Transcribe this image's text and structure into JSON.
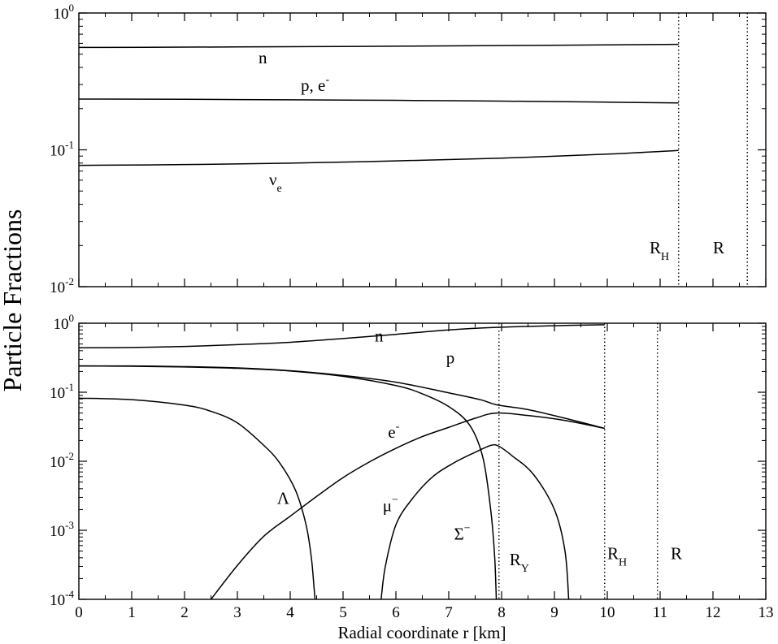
{
  "figure": {
    "ylabel": "Particle Fractions",
    "xlabel": "Radial coordinate r [km]"
  },
  "chart_data": [
    {
      "type": "line",
      "panel": "top",
      "log_y": true,
      "xlim": [
        0,
        13
      ],
      "ylim": [
        0.01,
        1
      ],
      "x_ticks": [
        0,
        1,
        2,
        3,
        4,
        5,
        6,
        7,
        8,
        9,
        10,
        11,
        12,
        13
      ],
      "y_ticks": [
        {
          "base": "10",
          "exp": "0",
          "value": 1
        },
        {
          "base": "10",
          "exp": "-1",
          "value": 0.1
        },
        {
          "base": "10",
          "exp": "-2",
          "value": 0.01
        }
      ],
      "x_tick_labels_shown": false,
      "series": [
        {
          "name": "n",
          "x": [
            0,
            2,
            4,
            6,
            8,
            10,
            11.35
          ],
          "y": [
            0.56,
            0.563,
            0.567,
            0.572,
            0.578,
            0.585,
            0.59
          ]
        },
        {
          "name": "p, e-",
          "x": [
            0,
            2,
            4,
            6,
            8,
            10,
            11.35
          ],
          "y": [
            0.235,
            0.234,
            0.232,
            0.23,
            0.227,
            0.223,
            0.22
          ]
        },
        {
          "name": "νe",
          "x": [
            0,
            2,
            4,
            6,
            8,
            10,
            11.35
          ],
          "y": [
            0.077,
            0.078,
            0.08,
            0.083,
            0.087,
            0.093,
            0.099
          ]
        }
      ],
      "annotations": [
        {
          "kind": "text",
          "parts": [
            {
              "text": "n"
            }
          ],
          "x": 3.4,
          "y": 0.43
        },
        {
          "kind": "text",
          "parts": [
            {
              "text": "p, e"
            },
            {
              "text": "-",
              "sup": true
            }
          ],
          "x": 4.2,
          "y": 0.27
        },
        {
          "kind": "text",
          "parts": [
            {
              "text": "ν"
            },
            {
              "text": "e",
              "sub": true
            }
          ],
          "x": 3.6,
          "y": 0.055
        },
        {
          "kind": "text",
          "parts": [
            {
              "text": "R"
            },
            {
              "text": "H",
              "sub": true
            }
          ],
          "x": 10.8,
          "y": 0.0175
        },
        {
          "kind": "text",
          "parts": [
            {
              "text": "R"
            }
          ],
          "x": 12.0,
          "y": 0.0175
        }
      ],
      "vlines": [
        11.35,
        12.65
      ]
    },
    {
      "type": "line",
      "panel": "bottom",
      "log_y": true,
      "xlim": [
        0,
        13
      ],
      "ylim": [
        0.0001,
        1
      ],
      "x_ticks": [
        0,
        1,
        2,
        3,
        4,
        5,
        6,
        7,
        8,
        9,
        10,
        11,
        12,
        13
      ],
      "y_ticks": [
        {
          "base": "10",
          "exp": "0",
          "value": 1
        },
        {
          "base": "10",
          "exp": "-1",
          "value": 0.1
        },
        {
          "base": "10",
          "exp": "-2",
          "value": 0.01
        },
        {
          "base": "10",
          "exp": "-3",
          "value": 0.001
        },
        {
          "base": "10",
          "exp": "-4",
          "value": 0.0001
        }
      ],
      "x_tick_labels_shown": true,
      "series": [
        {
          "name": "n",
          "x": [
            0,
            1,
            2,
            3,
            4,
            5,
            6,
            7,
            7.9,
            9,
            9.95
          ],
          "y": [
            0.44,
            0.445,
            0.46,
            0.49,
            0.53,
            0.6,
            0.69,
            0.8,
            0.87,
            0.92,
            0.95
          ]
        },
        {
          "name": "p",
          "x": [
            0,
            1,
            2,
            3,
            4,
            5,
            6,
            7,
            7.6,
            7.9,
            8.5,
            9.2,
            9.95
          ],
          "y": [
            0.24,
            0.24,
            0.235,
            0.225,
            0.205,
            0.175,
            0.14,
            0.098,
            0.078,
            0.066,
            0.056,
            0.042,
            0.03
          ]
        },
        {
          "name": "e-",
          "x": [
            2.5,
            3,
            3.5,
            4,
            4.5,
            5,
            5.5,
            6,
            6.5,
            7,
            7.5,
            7.9,
            8.5,
            9.2,
            9.95
          ],
          "y": [
            0.0001,
            0.00031,
            0.00082,
            0.0016,
            0.0031,
            0.0058,
            0.0098,
            0.0154,
            0.0228,
            0.031,
            0.042,
            0.05,
            0.046,
            0.039,
            0.03
          ]
        },
        {
          "name": "Λ",
          "x": [
            0,
            1,
            2,
            2.5,
            3,
            3.5,
            3.8,
            4.1,
            4.3,
            4.4,
            4.45,
            4.47
          ],
          "y": [
            0.082,
            0.078,
            0.065,
            0.053,
            0.036,
            0.017,
            0.0095,
            0.0038,
            0.0012,
            0.0004,
            0.00015,
            0.0001
          ]
        },
        {
          "name": "Σ-",
          "x": [
            0,
            1,
            2,
            3,
            4,
            5,
            6,
            6.5,
            7,
            7.4,
            7.65,
            7.8,
            7.87,
            7.9
          ],
          "y": [
            0.24,
            0.238,
            0.232,
            0.222,
            0.203,
            0.17,
            0.125,
            0.095,
            0.062,
            0.033,
            0.011,
            0.0018,
            0.0004,
            0.0001
          ]
        },
        {
          "name": "μ-",
          "x": [
            5.72,
            5.8,
            6,
            6.3,
            6.7,
            7.1,
            7.5,
            7.8,
            7.95,
            8.2,
            8.6,
            9.0,
            9.2,
            9.27
          ],
          "y": [
            0.0001,
            0.0003,
            0.0012,
            0.0028,
            0.006,
            0.0095,
            0.0135,
            0.017,
            0.0165,
            0.012,
            0.0065,
            0.002,
            0.0005,
            0.0001
          ]
        }
      ],
      "annotations": [
        {
          "kind": "text",
          "parts": [
            {
              "text": "n"
            }
          ],
          "x": 5.6,
          "y": 0.54
        },
        {
          "kind": "text",
          "parts": [
            {
              "text": "p"
            }
          ],
          "x": 6.95,
          "y": 0.26
        },
        {
          "kind": "text",
          "parts": [
            {
              "text": "e"
            },
            {
              "text": "-",
              "sup": true
            }
          ],
          "x": 5.85,
          "y": 0.022
        },
        {
          "kind": "text",
          "parts": [
            {
              "text": "Λ"
            }
          ],
          "x": 3.75,
          "y": 0.0024
        },
        {
          "kind": "text",
          "parts": [
            {
              "text": "μ"
            },
            {
              "text": "−",
              "sup": true
            }
          ],
          "x": 5.75,
          "y": 0.0019
        },
        {
          "kind": "text",
          "parts": [
            {
              "text": "Σ"
            },
            {
              "text": "−",
              "sup": true
            }
          ],
          "x": 7.1,
          "y": 0.00073
        },
        {
          "kind": "text",
          "parts": [
            {
              "text": "R"
            },
            {
              "text": "Y",
              "sub": true
            }
          ],
          "x": 8.15,
          "y": 0.00031
        },
        {
          "kind": "text",
          "parts": [
            {
              "text": "R"
            },
            {
              "text": "H",
              "sub": true
            }
          ],
          "x": 10.0,
          "y": 0.00038
        },
        {
          "kind": "text",
          "parts": [
            {
              "text": "R"
            }
          ],
          "x": 11.2,
          "y": 0.00038
        }
      ],
      "vlines": [
        7.95,
        9.95,
        10.95
      ]
    }
  ]
}
